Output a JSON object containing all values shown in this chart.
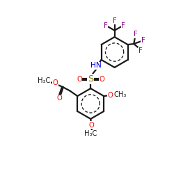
{
  "bg": "#ffffff",
  "bc": "#1a1a1a",
  "bw": 1.6,
  "NC": "#0000dd",
  "OC": "#ff0000",
  "SC": "#808000",
  "FC": "#880088",
  "fs": 7.2,
  "xlim": [
    -1,
    11
  ],
  "ylim": [
    -1,
    11
  ]
}
